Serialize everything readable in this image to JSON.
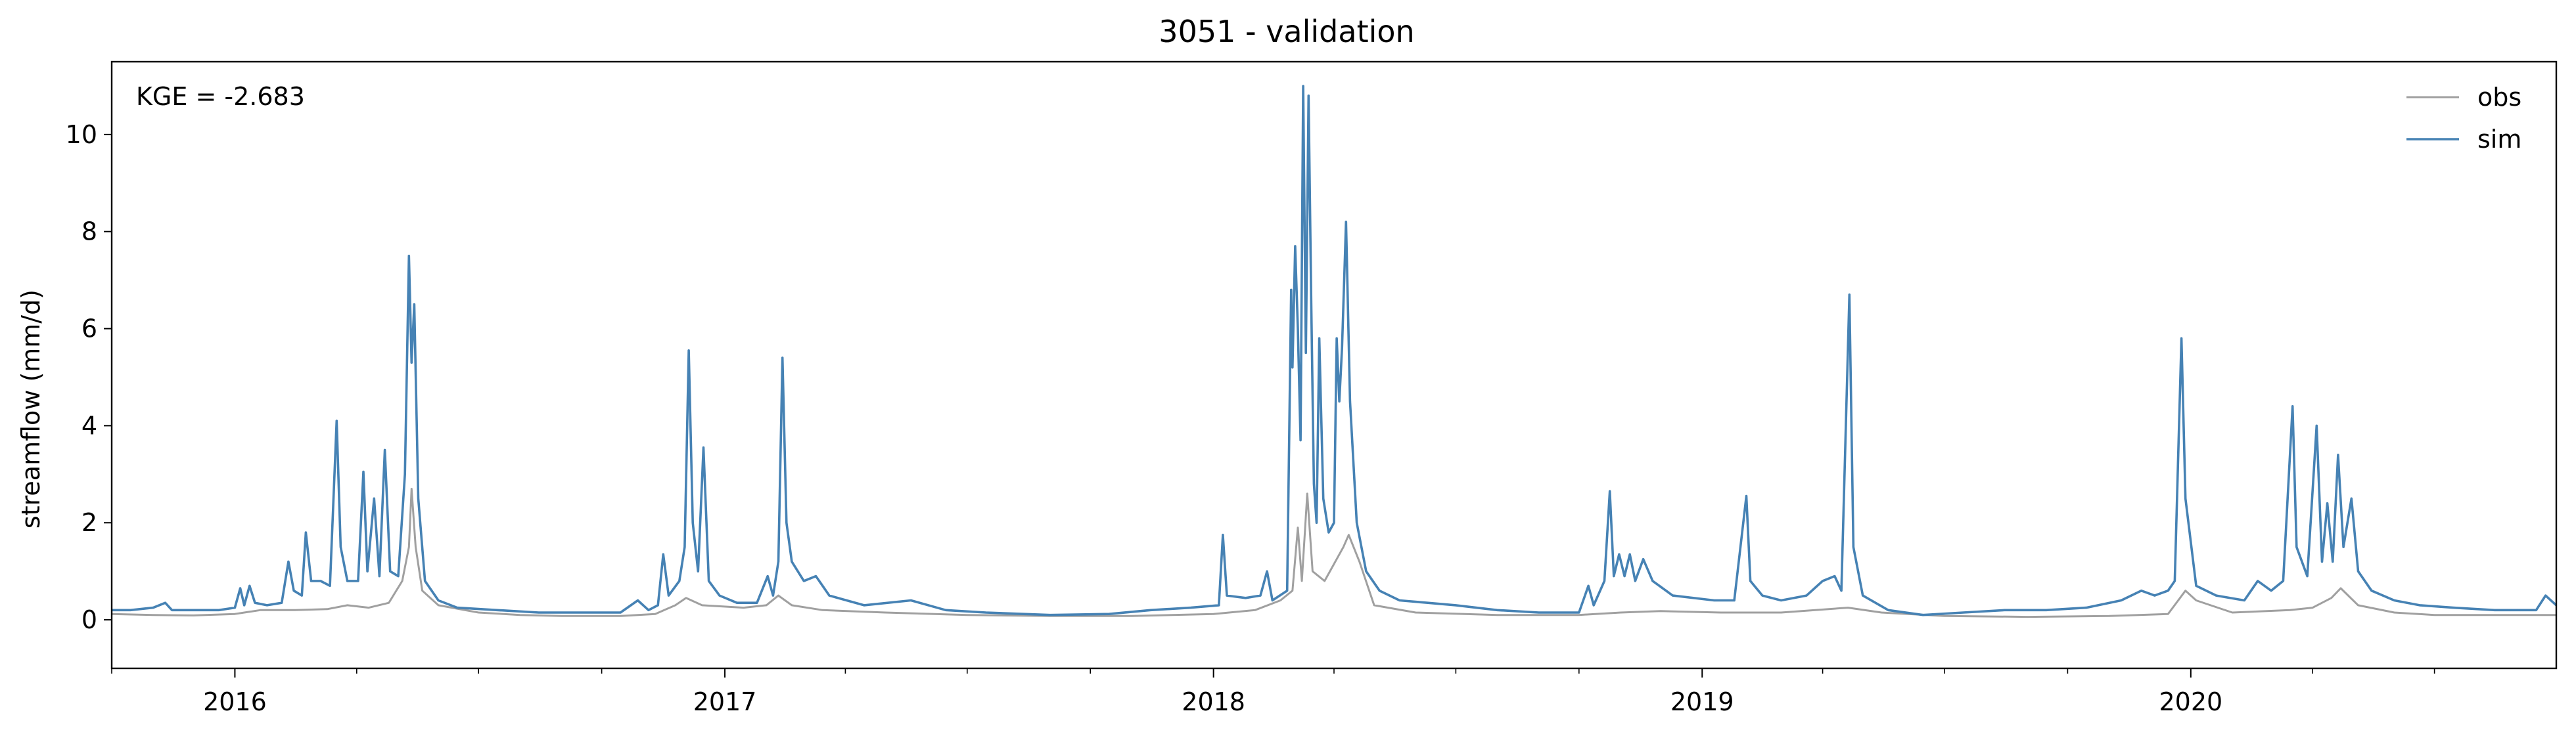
{
  "chart_data": {
    "type": "line",
    "title": "3051 - validation",
    "ylabel": "streamflow (mm/d)",
    "xlabel": "",
    "annotation": "KGE = -2.683",
    "xlim": [
      "2015-10-01",
      "2020-09-30"
    ],
    "ylim": [
      -1,
      11.5
    ],
    "yticks": [
      0,
      2,
      4,
      6,
      8,
      10
    ],
    "xticks": [
      {
        "date": "2016-01-01",
        "label": "2016"
      },
      {
        "date": "2017-01-01",
        "label": "2017"
      },
      {
        "date": "2018-01-01",
        "label": "2018"
      },
      {
        "date": "2019-01-01",
        "label": "2019"
      },
      {
        "date": "2020-01-01",
        "label": "2020"
      }
    ],
    "legend_position": "top-right",
    "grid": false,
    "series": [
      {
        "name": "obs",
        "color": "#a0a0a0",
        "points": [
          [
            "2015-10-01",
            0.12
          ],
          [
            "2015-11-01",
            0.1
          ],
          [
            "2015-12-01",
            0.09
          ],
          [
            "2016-01-01",
            0.12
          ],
          [
            "2016-01-20",
            0.2
          ],
          [
            "2016-02-15",
            0.2
          ],
          [
            "2016-03-10",
            0.22
          ],
          [
            "2016-03-25",
            0.3
          ],
          [
            "2016-04-10",
            0.25
          ],
          [
            "2016-04-25",
            0.35
          ],
          [
            "2016-05-05",
            0.8
          ],
          [
            "2016-05-10",
            1.5
          ],
          [
            "2016-05-12",
            2.7
          ],
          [
            "2016-05-15",
            1.5
          ],
          [
            "2016-05-20",
            0.6
          ],
          [
            "2016-06-01",
            0.3
          ],
          [
            "2016-07-01",
            0.15
          ],
          [
            "2016-08-01",
            0.1
          ],
          [
            "2016-09-01",
            0.08
          ],
          [
            "2016-10-15",
            0.08
          ],
          [
            "2016-11-10",
            0.12
          ],
          [
            "2016-11-25",
            0.3
          ],
          [
            "2016-12-03",
            0.45
          ],
          [
            "2016-12-15",
            0.3
          ],
          [
            "2017-01-15",
            0.25
          ],
          [
            "2017-02-01",
            0.3
          ],
          [
            "2017-02-10",
            0.5
          ],
          [
            "2017-02-20",
            0.3
          ],
          [
            "2017-03-15",
            0.2
          ],
          [
            "2017-05-01",
            0.15
          ],
          [
            "2017-07-01",
            0.1
          ],
          [
            "2017-09-01",
            0.08
          ],
          [
            "2017-11-01",
            0.08
          ],
          [
            "2018-01-01",
            0.12
          ],
          [
            "2018-02-01",
            0.2
          ],
          [
            "2018-02-20",
            0.4
          ],
          [
            "2018-03-01",
            0.6
          ],
          [
            "2018-03-05",
            1.9
          ],
          [
            "2018-03-08",
            0.8
          ],
          [
            "2018-03-12",
            2.6
          ],
          [
            "2018-03-16",
            1.0
          ],
          [
            "2018-03-25",
            0.8
          ],
          [
            "2018-04-08",
            1.5
          ],
          [
            "2018-04-12",
            1.75
          ],
          [
            "2018-04-20",
            1.2
          ],
          [
            "2018-05-01",
            0.3
          ],
          [
            "2018-06-01",
            0.15
          ],
          [
            "2018-08-01",
            0.1
          ],
          [
            "2018-10-01",
            0.1
          ],
          [
            "2018-11-01",
            0.15
          ],
          [
            "2018-12-01",
            0.18
          ],
          [
            "2019-01-15",
            0.15
          ],
          [
            "2019-03-01",
            0.15
          ],
          [
            "2019-04-20",
            0.25
          ],
          [
            "2019-05-15",
            0.15
          ],
          [
            "2019-07-01",
            0.08
          ],
          [
            "2019-09-01",
            0.06
          ],
          [
            "2019-11-01",
            0.08
          ],
          [
            "2019-12-15",
            0.12
          ],
          [
            "2019-12-28",
            0.6
          ],
          [
            "2020-01-05",
            0.4
          ],
          [
            "2020-02-01",
            0.15
          ],
          [
            "2020-03-15",
            0.2
          ],
          [
            "2020-04-01",
            0.25
          ],
          [
            "2020-04-15",
            0.45
          ],
          [
            "2020-04-22",
            0.65
          ],
          [
            "2020-05-05",
            0.3
          ],
          [
            "2020-06-01",
            0.15
          ],
          [
            "2020-07-01",
            0.1
          ],
          [
            "2020-09-30",
            0.1
          ]
        ]
      },
      {
        "name": "sim",
        "color": "#4682b4",
        "points": [
          [
            "2015-10-01",
            0.2
          ],
          [
            "2015-10-15",
            0.2
          ],
          [
            "2015-11-01",
            0.25
          ],
          [
            "2015-11-10",
            0.35
          ],
          [
            "2015-11-15",
            0.2
          ],
          [
            "2015-12-01",
            0.2
          ],
          [
            "2015-12-20",
            0.2
          ],
          [
            "2016-01-01",
            0.25
          ],
          [
            "2016-01-05",
            0.65
          ],
          [
            "2016-01-08",
            0.3
          ],
          [
            "2016-01-12",
            0.7
          ],
          [
            "2016-01-16",
            0.35
          ],
          [
            "2016-01-25",
            0.3
          ],
          [
            "2016-02-05",
            0.35
          ],
          [
            "2016-02-10",
            1.2
          ],
          [
            "2016-02-14",
            0.6
          ],
          [
            "2016-02-20",
            0.5
          ],
          [
            "2016-02-23",
            1.8
          ],
          [
            "2016-02-27",
            0.8
          ],
          [
            "2016-03-05",
            0.8
          ],
          [
            "2016-03-12",
            0.7
          ],
          [
            "2016-03-17",
            4.1
          ],
          [
            "2016-03-20",
            1.5
          ],
          [
            "2016-03-25",
            0.8
          ],
          [
            "2016-04-02",
            0.8
          ],
          [
            "2016-04-06",
            3.05
          ],
          [
            "2016-04-09",
            1.0
          ],
          [
            "2016-04-14",
            2.5
          ],
          [
            "2016-04-18",
            0.9
          ],
          [
            "2016-04-22",
            3.5
          ],
          [
            "2016-04-26",
            1.0
          ],
          [
            "2016-05-02",
            0.9
          ],
          [
            "2016-05-07",
            3.0
          ],
          [
            "2016-05-10",
            7.5
          ],
          [
            "2016-05-12",
            5.3
          ],
          [
            "2016-05-14",
            6.5
          ],
          [
            "2016-05-17",
            2.5
          ],
          [
            "2016-05-22",
            0.8
          ],
          [
            "2016-06-01",
            0.4
          ],
          [
            "2016-06-15",
            0.25
          ],
          [
            "2016-07-15",
            0.2
          ],
          [
            "2016-08-15",
            0.15
          ],
          [
            "2016-09-15",
            0.15
          ],
          [
            "2016-10-15",
            0.15
          ],
          [
            "2016-10-28",
            0.4
          ],
          [
            "2016-11-05",
            0.2
          ],
          [
            "2016-11-12",
            0.3
          ],
          [
            "2016-11-16",
            1.35
          ],
          [
            "2016-11-20",
            0.5
          ],
          [
            "2016-11-28",
            0.8
          ],
          [
            "2016-12-02",
            1.5
          ],
          [
            "2016-12-05",
            5.55
          ],
          [
            "2016-12-08",
            2.0
          ],
          [
            "2016-12-12",
            1.0
          ],
          [
            "2016-12-16",
            3.55
          ],
          [
            "2016-12-20",
            0.8
          ],
          [
            "2016-12-28",
            0.5
          ],
          [
            "2017-01-10",
            0.35
          ],
          [
            "2017-01-25",
            0.35
          ],
          [
            "2017-02-02",
            0.9
          ],
          [
            "2017-02-06",
            0.5
          ],
          [
            "2017-02-10",
            1.2
          ],
          [
            "2017-02-13",
            5.4
          ],
          [
            "2017-02-16",
            2.0
          ],
          [
            "2017-02-20",
            1.2
          ],
          [
            "2017-03-01",
            0.8
          ],
          [
            "2017-03-10",
            0.9
          ],
          [
            "2017-03-20",
            0.5
          ],
          [
            "2017-04-15",
            0.3
          ],
          [
            "2017-05-20",
            0.4
          ],
          [
            "2017-06-15",
            0.2
          ],
          [
            "2017-07-15",
            0.15
          ],
          [
            "2017-09-01",
            0.1
          ],
          [
            "2017-10-15",
            0.12
          ],
          [
            "2017-11-15",
            0.2
          ],
          [
            "2017-12-15",
            0.25
          ],
          [
            "2018-01-05",
            0.3
          ],
          [
            "2018-01-08",
            1.75
          ],
          [
            "2018-01-11",
            0.5
          ],
          [
            "2018-01-25",
            0.45
          ],
          [
            "2018-02-05",
            0.5
          ],
          [
            "2018-02-10",
            1.0
          ],
          [
            "2018-02-14",
            0.4
          ],
          [
            "2018-02-25",
            0.6
          ],
          [
            "2018-02-28",
            6.8
          ],
          [
            "2018-03-01",
            5.2
          ],
          [
            "2018-03-03",
            7.7
          ],
          [
            "2018-03-05",
            6.0
          ],
          [
            "2018-03-07",
            3.7
          ],
          [
            "2018-03-09",
            11.0
          ],
          [
            "2018-03-11",
            5.5
          ],
          [
            "2018-03-13",
            10.8
          ],
          [
            "2018-03-15",
            6.5
          ],
          [
            "2018-03-17",
            2.8
          ],
          [
            "2018-03-19",
            2.0
          ],
          [
            "2018-03-21",
            5.8
          ],
          [
            "2018-03-24",
            2.5
          ],
          [
            "2018-03-28",
            1.8
          ],
          [
            "2018-04-01",
            2.0
          ],
          [
            "2018-04-03",
            5.8
          ],
          [
            "2018-04-05",
            4.5
          ],
          [
            "2018-04-07",
            5.6
          ],
          [
            "2018-04-10",
            8.2
          ],
          [
            "2018-04-13",
            4.5
          ],
          [
            "2018-04-18",
            2.0
          ],
          [
            "2018-04-25",
            1.0
          ],
          [
            "2018-05-05",
            0.6
          ],
          [
            "2018-05-20",
            0.4
          ],
          [
            "2018-06-10",
            0.35
          ],
          [
            "2018-07-01",
            0.3
          ],
          [
            "2018-08-01",
            0.2
          ],
          [
            "2018-09-01",
            0.15
          ],
          [
            "2018-10-01",
            0.15
          ],
          [
            "2018-10-08",
            0.7
          ],
          [
            "2018-10-12",
            0.3
          ],
          [
            "2018-10-20",
            0.8
          ],
          [
            "2018-10-24",
            2.65
          ],
          [
            "2018-10-27",
            0.9
          ],
          [
            "2018-10-31",
            1.35
          ],
          [
            "2018-11-04",
            0.9
          ],
          [
            "2018-11-08",
            1.35
          ],
          [
            "2018-11-12",
            0.8
          ],
          [
            "2018-11-18",
            1.25
          ],
          [
            "2018-11-25",
            0.8
          ],
          [
            "2018-12-10",
            0.5
          ],
          [
            "2019-01-10",
            0.4
          ],
          [
            "2019-01-25",
            0.4
          ],
          [
            "2019-02-03",
            2.55
          ],
          [
            "2019-02-06",
            0.8
          ],
          [
            "2019-02-15",
            0.5
          ],
          [
            "2019-03-01",
            0.4
          ],
          [
            "2019-03-20",
            0.5
          ],
          [
            "2019-04-01",
            0.8
          ],
          [
            "2019-04-10",
            0.9
          ],
          [
            "2019-04-15",
            0.6
          ],
          [
            "2019-04-21",
            6.7
          ],
          [
            "2019-04-24",
            1.5
          ],
          [
            "2019-05-01",
            0.5
          ],
          [
            "2019-05-20",
            0.2
          ],
          [
            "2019-06-15",
            0.1
          ],
          [
            "2019-07-15",
            0.15
          ],
          [
            "2019-08-15",
            0.2
          ],
          [
            "2019-09-15",
            0.2
          ],
          [
            "2019-10-15",
            0.25
          ],
          [
            "2019-11-10",
            0.4
          ],
          [
            "2019-11-25",
            0.6
          ],
          [
            "2019-12-05",
            0.5
          ],
          [
            "2019-12-15",
            0.6
          ],
          [
            "2019-12-20",
            0.8
          ],
          [
            "2019-12-25",
            5.8
          ],
          [
            "2019-12-28",
            2.5
          ],
          [
            "2020-01-05",
            0.7
          ],
          [
            "2020-01-20",
            0.5
          ],
          [
            "2020-02-10",
            0.4
          ],
          [
            "2020-02-20",
            0.8
          ],
          [
            "2020-03-01",
            0.6
          ],
          [
            "2020-03-10",
            0.8
          ],
          [
            "2020-03-17",
            4.4
          ],
          [
            "2020-03-20",
            1.5
          ],
          [
            "2020-03-28",
            0.9
          ],
          [
            "2020-04-04",
            4.0
          ],
          [
            "2020-04-08",
            1.2
          ],
          [
            "2020-04-12",
            2.4
          ],
          [
            "2020-04-16",
            1.2
          ],
          [
            "2020-04-20",
            3.4
          ],
          [
            "2020-04-24",
            1.5
          ],
          [
            "2020-04-30",
            2.5
          ],
          [
            "2020-05-05",
            1.0
          ],
          [
            "2020-05-15",
            0.6
          ],
          [
            "2020-06-01",
            0.4
          ],
          [
            "2020-06-20",
            0.3
          ],
          [
            "2020-07-15",
            0.25
          ],
          [
            "2020-08-15",
            0.2
          ],
          [
            "2020-09-15",
            0.2
          ],
          [
            "2020-09-22",
            0.5
          ],
          [
            "2020-09-30",
            0.3
          ]
        ]
      }
    ]
  }
}
